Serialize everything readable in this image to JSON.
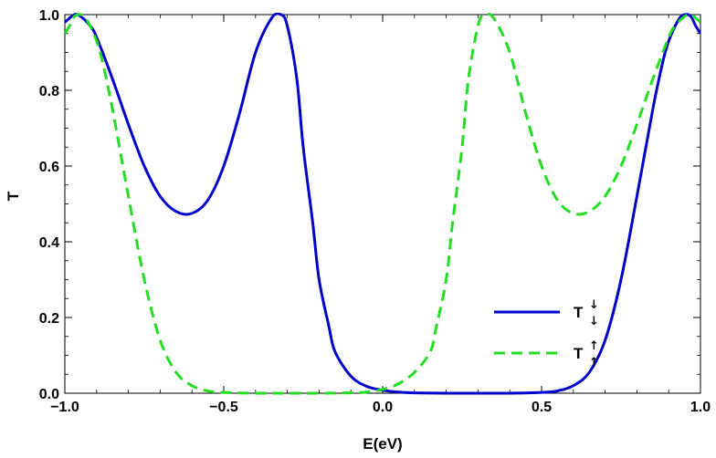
{
  "chart_data": {
    "type": "line",
    "title": "",
    "xlabel": "E(eV)",
    "ylabel": "T",
    "xlim": [
      -1.0,
      1.0
    ],
    "ylim": [
      0.0,
      1.0
    ],
    "x_ticks": [
      {
        "value": -1.0,
        "label": "−1.0"
      },
      {
        "value": -0.5,
        "label": "−0.5"
      },
      {
        "value": 0.0,
        "label": "0.0"
      },
      {
        "value": 0.5,
        "label": "0.5"
      },
      {
        "value": 1.0,
        "label": "1.0"
      }
    ],
    "y_ticks": [
      {
        "value": 0.0,
        "label": "0.0"
      },
      {
        "value": 0.2,
        "label": "0.2"
      },
      {
        "value": 0.4,
        "label": "0.4"
      },
      {
        "value": 0.6,
        "label": "0.6"
      },
      {
        "value": 0.8,
        "label": "0.8"
      },
      {
        "value": 1.0,
        "label": "1.0"
      }
    ],
    "grid": false,
    "legend_position": "bottom-right",
    "series": [
      {
        "name": "T",
        "legend_symbols": [
          "↓",
          "↓"
        ],
        "color": "#0000cc",
        "style": "solid",
        "x": [
          -1.0,
          -0.97,
          -0.95,
          -0.92,
          -0.9,
          -0.85,
          -0.8,
          -0.75,
          -0.7,
          -0.65,
          -0.6,
          -0.55,
          -0.5,
          -0.45,
          -0.4,
          -0.35,
          -0.32,
          -0.3,
          -0.27,
          -0.25,
          -0.22,
          -0.2,
          -0.17,
          -0.15,
          -0.1,
          -0.05,
          0.0,
          0.05,
          0.1,
          0.2,
          0.3,
          0.4,
          0.5,
          0.55,
          0.6,
          0.65,
          0.7,
          0.75,
          0.8,
          0.85,
          0.88,
          0.9,
          0.93,
          0.95,
          0.97,
          0.985,
          1.0
        ],
        "y": [
          0.98,
          1.0,
          0.995,
          0.97,
          0.94,
          0.83,
          0.71,
          0.6,
          0.52,
          0.48,
          0.475,
          0.51,
          0.6,
          0.74,
          0.9,
          0.99,
          1.0,
          0.97,
          0.83,
          0.65,
          0.45,
          0.3,
          0.18,
          0.11,
          0.045,
          0.018,
          0.008,
          0.003,
          0.001,
          0.0,
          0.0,
          0.0,
          0.002,
          0.006,
          0.02,
          0.055,
          0.14,
          0.3,
          0.52,
          0.75,
          0.87,
          0.93,
          0.985,
          1.0,
          0.995,
          0.97,
          0.95
        ]
      },
      {
        "name": "T",
        "legend_symbols": [
          "↑",
          "↑"
        ],
        "color": "#22dd22",
        "style": "dashed",
        "x": [
          -1.0,
          -0.985,
          -0.97,
          -0.95,
          -0.93,
          -0.9,
          -0.88,
          -0.85,
          -0.8,
          -0.75,
          -0.7,
          -0.65,
          -0.6,
          -0.55,
          -0.5,
          -0.4,
          -0.3,
          -0.2,
          -0.1,
          -0.05,
          0.0,
          0.05,
          0.1,
          0.15,
          0.17,
          0.2,
          0.22,
          0.25,
          0.27,
          0.3,
          0.32,
          0.35,
          0.4,
          0.45,
          0.5,
          0.55,
          0.6,
          0.65,
          0.7,
          0.75,
          0.8,
          0.85,
          0.9,
          0.92,
          0.95,
          0.97,
          1.0
        ],
        "y": [
          0.95,
          0.97,
          0.995,
          1.0,
          0.985,
          0.93,
          0.87,
          0.75,
          0.52,
          0.3,
          0.14,
          0.055,
          0.02,
          0.006,
          0.002,
          0.0,
          0.0,
          0.0,
          0.001,
          0.003,
          0.01,
          0.025,
          0.055,
          0.11,
          0.18,
          0.3,
          0.45,
          0.65,
          0.83,
          0.97,
          1.0,
          0.99,
          0.9,
          0.74,
          0.6,
          0.51,
          0.475,
          0.48,
          0.52,
          0.6,
          0.71,
          0.83,
          0.94,
          0.97,
          0.995,
          1.0,
          0.98
        ]
      }
    ]
  }
}
